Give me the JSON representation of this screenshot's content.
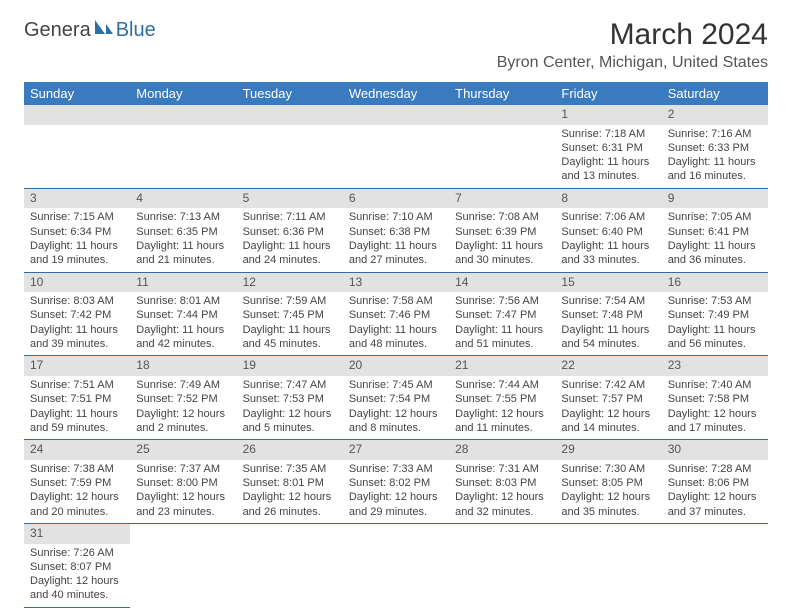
{
  "logo": {
    "text_general": "Genera",
    "text_blue": "Blue"
  },
  "header": {
    "month_title": "March 2024",
    "location": "Byron Center, Michigan, United States"
  },
  "styling": {
    "header_bg": "#3a7bbf",
    "header_text": "#ffffff",
    "daynum_bg": "#e2e2e2",
    "border_color": "#2f6fa7",
    "body_text": "#444444",
    "font_family": "Arial",
    "title_fontsize": 30,
    "location_fontsize": 16,
    "dayheader_fontsize": 13,
    "cell_fontsize": 11
  },
  "day_headers": [
    "Sunday",
    "Monday",
    "Tuesday",
    "Wednesday",
    "Thursday",
    "Friday",
    "Saturday"
  ],
  "weeks": [
    [
      null,
      null,
      null,
      null,
      null,
      {
        "n": "1",
        "sunrise": "Sunrise: 7:18 AM",
        "sunset": "Sunset: 6:31 PM",
        "daylight": "Daylight: 11 hours and 13 minutes."
      },
      {
        "n": "2",
        "sunrise": "Sunrise: 7:16 AM",
        "sunset": "Sunset: 6:33 PM",
        "daylight": "Daylight: 11 hours and 16 minutes."
      }
    ],
    [
      {
        "n": "3",
        "sunrise": "Sunrise: 7:15 AM",
        "sunset": "Sunset: 6:34 PM",
        "daylight": "Daylight: 11 hours and 19 minutes."
      },
      {
        "n": "4",
        "sunrise": "Sunrise: 7:13 AM",
        "sunset": "Sunset: 6:35 PM",
        "daylight": "Daylight: 11 hours and 21 minutes."
      },
      {
        "n": "5",
        "sunrise": "Sunrise: 7:11 AM",
        "sunset": "Sunset: 6:36 PM",
        "daylight": "Daylight: 11 hours and 24 minutes."
      },
      {
        "n": "6",
        "sunrise": "Sunrise: 7:10 AM",
        "sunset": "Sunset: 6:38 PM",
        "daylight": "Daylight: 11 hours and 27 minutes."
      },
      {
        "n": "7",
        "sunrise": "Sunrise: 7:08 AM",
        "sunset": "Sunset: 6:39 PM",
        "daylight": "Daylight: 11 hours and 30 minutes."
      },
      {
        "n": "8",
        "sunrise": "Sunrise: 7:06 AM",
        "sunset": "Sunset: 6:40 PM",
        "daylight": "Daylight: 11 hours and 33 minutes."
      },
      {
        "n": "9",
        "sunrise": "Sunrise: 7:05 AM",
        "sunset": "Sunset: 6:41 PM",
        "daylight": "Daylight: 11 hours and 36 minutes."
      }
    ],
    [
      {
        "n": "10",
        "sunrise": "Sunrise: 8:03 AM",
        "sunset": "Sunset: 7:42 PM",
        "daylight": "Daylight: 11 hours and 39 minutes."
      },
      {
        "n": "11",
        "sunrise": "Sunrise: 8:01 AM",
        "sunset": "Sunset: 7:44 PM",
        "daylight": "Daylight: 11 hours and 42 minutes."
      },
      {
        "n": "12",
        "sunrise": "Sunrise: 7:59 AM",
        "sunset": "Sunset: 7:45 PM",
        "daylight": "Daylight: 11 hours and 45 minutes."
      },
      {
        "n": "13",
        "sunrise": "Sunrise: 7:58 AM",
        "sunset": "Sunset: 7:46 PM",
        "daylight": "Daylight: 11 hours and 48 minutes."
      },
      {
        "n": "14",
        "sunrise": "Sunrise: 7:56 AM",
        "sunset": "Sunset: 7:47 PM",
        "daylight": "Daylight: 11 hours and 51 minutes."
      },
      {
        "n": "15",
        "sunrise": "Sunrise: 7:54 AM",
        "sunset": "Sunset: 7:48 PM",
        "daylight": "Daylight: 11 hours and 54 minutes."
      },
      {
        "n": "16",
        "sunrise": "Sunrise: 7:53 AM",
        "sunset": "Sunset: 7:49 PM",
        "daylight": "Daylight: 11 hours and 56 minutes."
      }
    ],
    [
      {
        "n": "17",
        "sunrise": "Sunrise: 7:51 AM",
        "sunset": "Sunset: 7:51 PM",
        "daylight": "Daylight: 11 hours and 59 minutes."
      },
      {
        "n": "18",
        "sunrise": "Sunrise: 7:49 AM",
        "sunset": "Sunset: 7:52 PM",
        "daylight": "Daylight: 12 hours and 2 minutes."
      },
      {
        "n": "19",
        "sunrise": "Sunrise: 7:47 AM",
        "sunset": "Sunset: 7:53 PM",
        "daylight": "Daylight: 12 hours and 5 minutes."
      },
      {
        "n": "20",
        "sunrise": "Sunrise: 7:45 AM",
        "sunset": "Sunset: 7:54 PM",
        "daylight": "Daylight: 12 hours and 8 minutes."
      },
      {
        "n": "21",
        "sunrise": "Sunrise: 7:44 AM",
        "sunset": "Sunset: 7:55 PM",
        "daylight": "Daylight: 12 hours and 11 minutes."
      },
      {
        "n": "22",
        "sunrise": "Sunrise: 7:42 AM",
        "sunset": "Sunset: 7:57 PM",
        "daylight": "Daylight: 12 hours and 14 minutes."
      },
      {
        "n": "23",
        "sunrise": "Sunrise: 7:40 AM",
        "sunset": "Sunset: 7:58 PM",
        "daylight": "Daylight: 12 hours and 17 minutes."
      }
    ],
    [
      {
        "n": "24",
        "sunrise": "Sunrise: 7:38 AM",
        "sunset": "Sunset: 7:59 PM",
        "daylight": "Daylight: 12 hours and 20 minutes."
      },
      {
        "n": "25",
        "sunrise": "Sunrise: 7:37 AM",
        "sunset": "Sunset: 8:00 PM",
        "daylight": "Daylight: 12 hours and 23 minutes."
      },
      {
        "n": "26",
        "sunrise": "Sunrise: 7:35 AM",
        "sunset": "Sunset: 8:01 PM",
        "daylight": "Daylight: 12 hours and 26 minutes."
      },
      {
        "n": "27",
        "sunrise": "Sunrise: 7:33 AM",
        "sunset": "Sunset: 8:02 PM",
        "daylight": "Daylight: 12 hours and 29 minutes."
      },
      {
        "n": "28",
        "sunrise": "Sunrise: 7:31 AM",
        "sunset": "Sunset: 8:03 PM",
        "daylight": "Daylight: 12 hours and 32 minutes."
      },
      {
        "n": "29",
        "sunrise": "Sunrise: 7:30 AM",
        "sunset": "Sunset: 8:05 PM",
        "daylight": "Daylight: 12 hours and 35 minutes."
      },
      {
        "n": "30",
        "sunrise": "Sunrise: 7:28 AM",
        "sunset": "Sunset: 8:06 PM",
        "daylight": "Daylight: 12 hours and 37 minutes."
      }
    ],
    [
      {
        "n": "31",
        "sunrise": "Sunrise: 7:26 AM",
        "sunset": "Sunset: 8:07 PM",
        "daylight": "Daylight: 12 hours and 40 minutes."
      },
      null,
      null,
      null,
      null,
      null,
      null
    ]
  ]
}
